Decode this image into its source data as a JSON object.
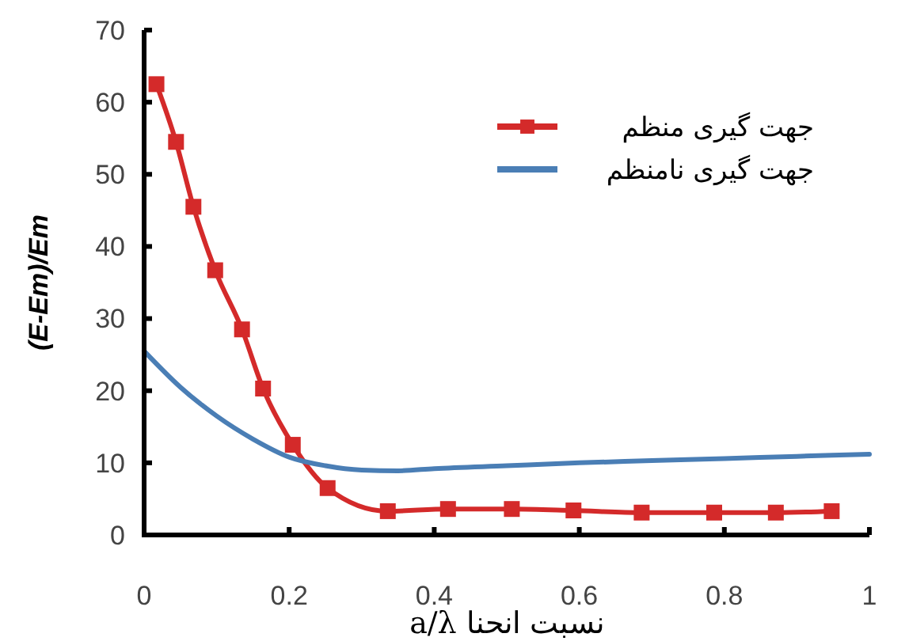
{
  "chart_data": {
    "type": "line",
    "xlabel": "نسبت انحنا a/λ",
    "ylabel": "(E-Em)/Em",
    "xlim": [
      0,
      1
    ],
    "ylim": [
      0,
      70
    ],
    "xticks": [
      0,
      0.2,
      0.4,
      0.6,
      0.8,
      1
    ],
    "yticks": [
      0,
      10,
      20,
      30,
      40,
      50,
      60,
      70
    ],
    "grid": false,
    "legend": "top right",
    "series": [
      {
        "name": "جهت گیری منظم",
        "color": "#d42a2a",
        "marker": "square",
        "x": [
          0.017,
          0.044,
          0.068,
          0.098,
          0.135,
          0.164,
          0.205,
          0.253,
          0.336,
          0.419,
          0.507,
          0.592,
          0.686,
          0.786,
          0.871,
          0.948
        ],
        "values": [
          62.5,
          54.5,
          45.5,
          36.7,
          28.5,
          20.3,
          12.5,
          6.5,
          3.3,
          3.6,
          3.6,
          3.4,
          3.1,
          3.1,
          3.1,
          3.3
        ]
      },
      {
        "name": "جهت گیری نامنظم",
        "color": "#4a7eb5",
        "marker": "none",
        "x": [
          0,
          0.05,
          0.1,
          0.15,
          0.2,
          0.25,
          0.3,
          0.35,
          0.4,
          0.5,
          0.6,
          0.7,
          0.8,
          0.9,
          1
        ],
        "values": [
          25.5,
          20.5,
          16.5,
          13.3,
          10.8,
          9.6,
          9.0,
          8.9,
          9.2,
          9.6,
          10.0,
          10.3,
          10.6,
          10.9,
          11.2
        ]
      }
    ]
  }
}
